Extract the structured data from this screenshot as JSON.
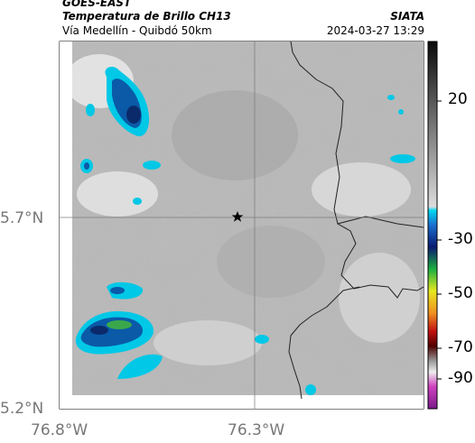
{
  "header": {
    "satellite": "GOES-EAST",
    "product": "Temperatura de Brillo CH13",
    "region": "Vía Medellín - Quibdó 50km",
    "agency": "SIATA",
    "datetime": "2024-03-27 13:29"
  },
  "axes": {
    "x_ticks": [
      "76.8°W",
      "76.3°W"
    ],
    "y_ticks": [
      "5.7°N",
      "5.2°N"
    ]
  },
  "colorbar": {
    "ticks": [
      "20",
      "-30",
      "-50",
      "-70",
      "-90"
    ]
  },
  "marker": {
    "icon": "star-icon"
  },
  "colors": {
    "cold_cloud_cyan": "#00c8e6",
    "cold_cloud_blue": "#0a5aa8",
    "cold_cloud_navy": "#0a2a6a",
    "cold_cloud_green": "#3aa84a",
    "boundary_line": "#222222"
  }
}
